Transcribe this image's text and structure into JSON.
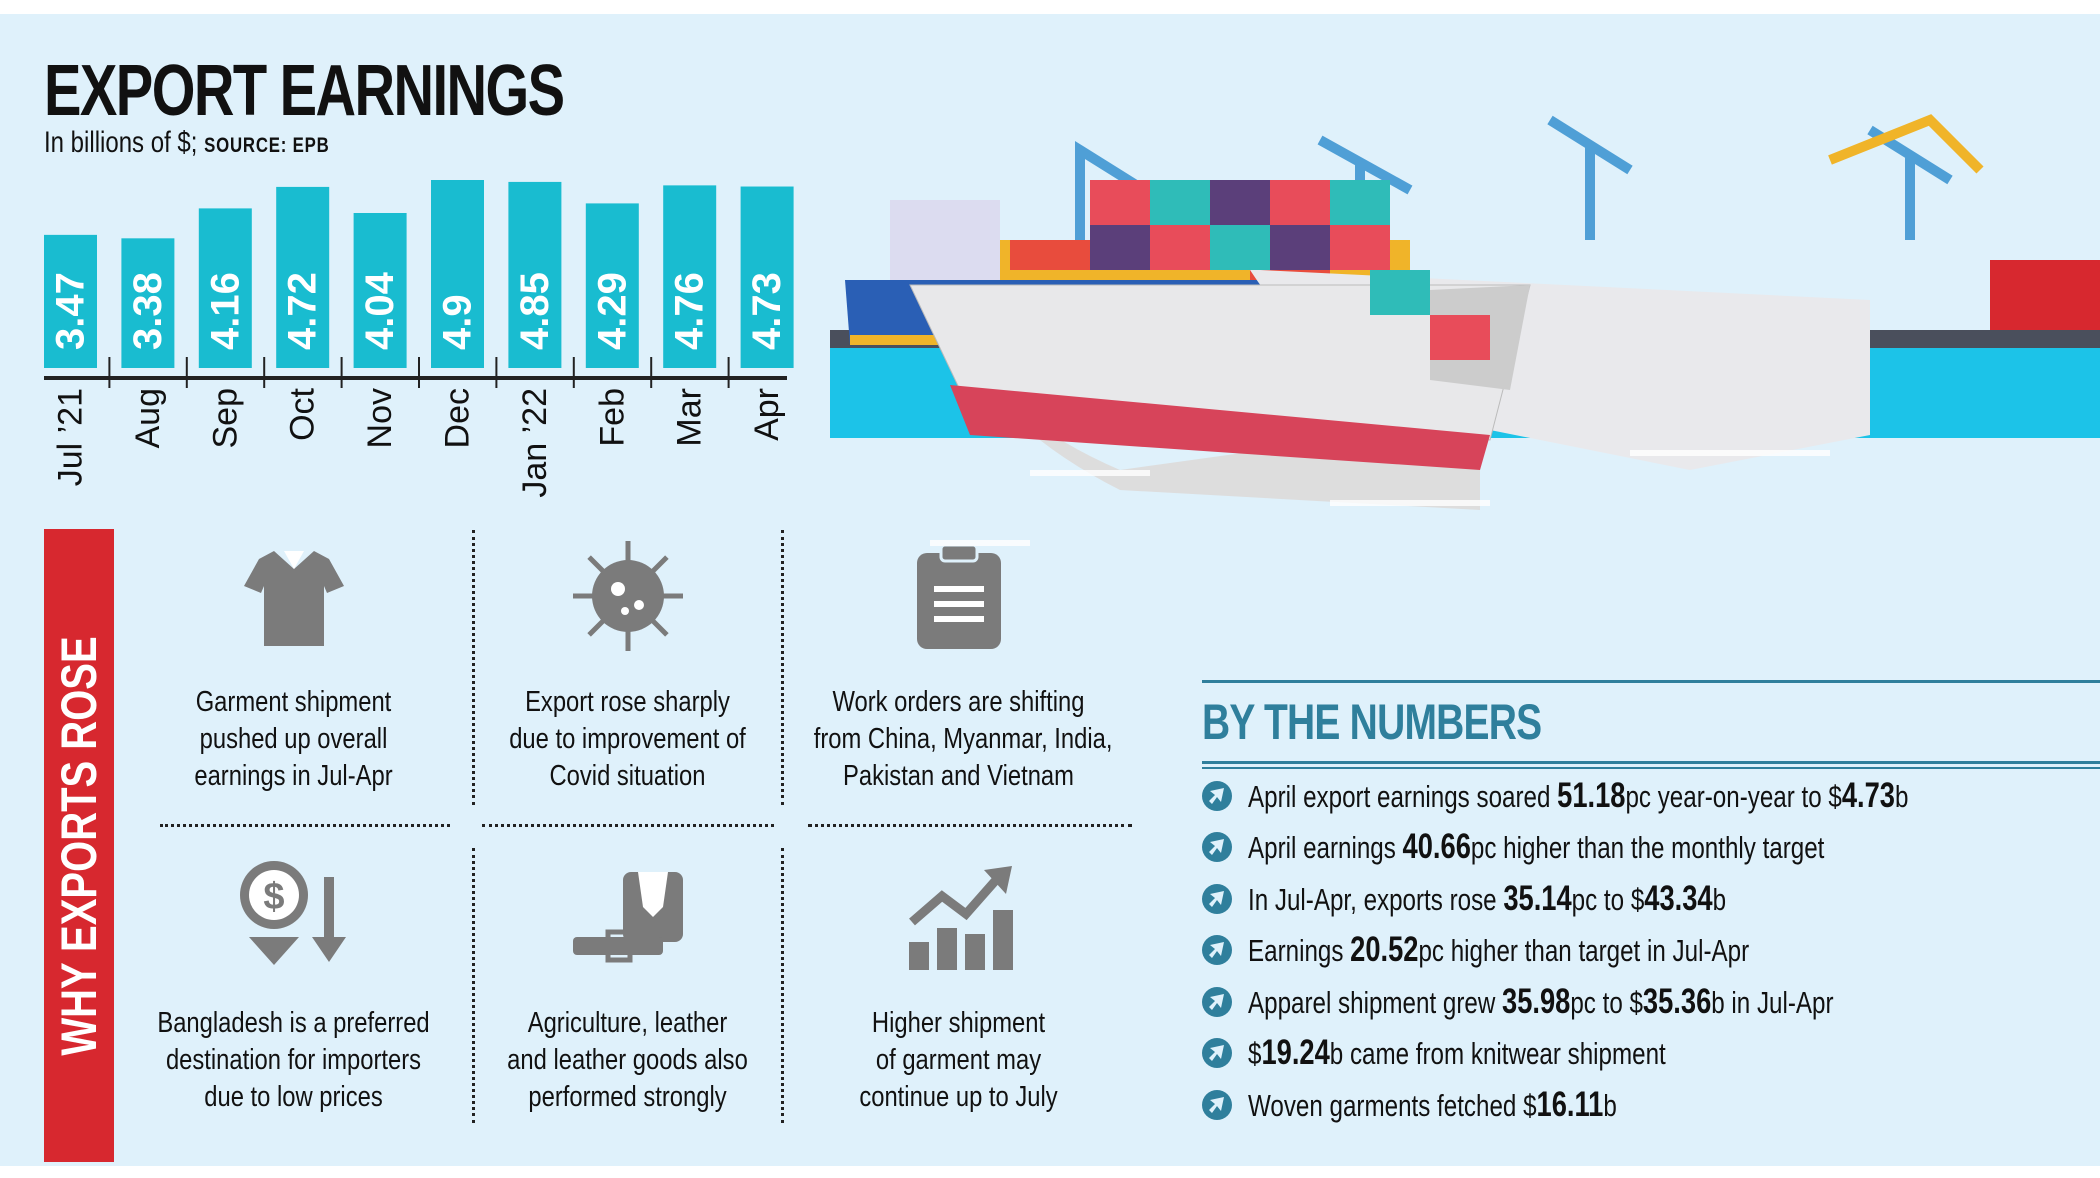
{
  "title": "EXPORT EARNINGS",
  "subtitle": "In billions of $;",
  "source": "SOURCE: EPB",
  "chart_data": {
    "type": "bar",
    "title": "EXPORT EARNINGS",
    "ylabel": "In billions of $",
    "categories": [
      "Jul '21",
      "Aug",
      "Sep",
      "Oct",
      "Nov",
      "Dec",
      "Jan '22",
      "Feb",
      "Mar",
      "Apr"
    ],
    "values": [
      3.47,
      3.38,
      4.16,
      4.72,
      4.04,
      4.9,
      4.85,
      4.29,
      4.76,
      4.73
    ],
    "value_labels": [
      "3.47",
      "3.38",
      "4.16",
      "4.72",
      "4.04",
      "4.9",
      "4.85",
      "4.29",
      "4.76",
      "4.73"
    ],
    "ylim": [
      0,
      4.9
    ],
    "grid": false,
    "bar_color": "#19bcd0"
  },
  "why": {
    "heading": "WHY EXPORTS ROSE",
    "accent": "#d7282f",
    "reasons": [
      {
        "icon": "shirt-icon",
        "lines": [
          "Garment shipment",
          "pushed up overall",
          "earnings in Jul-Apr"
        ]
      },
      {
        "icon": "virus-icon",
        "lines": [
          "Export rose sharply",
          "due to improvement of",
          "Covid situation"
        ]
      },
      {
        "icon": "clipboard-icon",
        "lines": [
          "Work orders are shifting",
          "from China, Myanmar, India,",
          "Pakistan and Vietnam"
        ]
      },
      {
        "icon": "dollar-down-icon",
        "lines": [
          "Bangladesh is a preferred",
          "destination for importers",
          "due to low prices"
        ]
      },
      {
        "icon": "leather-bag-icon",
        "lines": [
          "Agriculture, leather",
          "and leather goods also",
          "performed strongly"
        ]
      },
      {
        "icon": "growth-chart-icon",
        "lines": [
          "Higher shipment",
          "of garment may",
          "continue up to July"
        ]
      }
    ]
  },
  "numbers": {
    "heading": "BY THE NUMBERS",
    "accent": "#2f7f9c",
    "items": [
      [
        {
          "t": "April export earnings soared "
        },
        {
          "t": "51.18",
          "b": true
        },
        {
          "t": "pc year-on-year to $"
        },
        {
          "t": "4.73",
          "b": true
        },
        {
          "t": "b"
        }
      ],
      [
        {
          "t": "April earnings "
        },
        {
          "t": "40.66",
          "b": true
        },
        {
          "t": "pc higher than the monthly target"
        }
      ],
      [
        {
          "t": "In Jul-Apr, exports rose "
        },
        {
          "t": "35.14",
          "b": true
        },
        {
          "t": "pc to $"
        },
        {
          "t": "43.34",
          "b": true
        },
        {
          "t": "b"
        }
      ],
      [
        {
          "t": "Earnings "
        },
        {
          "t": "20.52",
          "b": true
        },
        {
          "t": "pc higher than target in Jul-Apr"
        }
      ],
      [
        {
          "t": "Apparel shipment grew "
        },
        {
          "t": "35.98",
          "b": true
        },
        {
          "t": "pc to $"
        },
        {
          "t": "35.36",
          "b": true
        },
        {
          "t": "b in Jul-Apr"
        }
      ],
      [
        {
          "t": "$"
        },
        {
          "t": "19.24",
          "b": true
        },
        {
          "t": "b came from knitwear shipment"
        }
      ],
      [
        {
          "t": "Woven garments fetched $"
        },
        {
          "t": "16.11",
          "b": true
        },
        {
          "t": "b"
        }
      ]
    ]
  }
}
